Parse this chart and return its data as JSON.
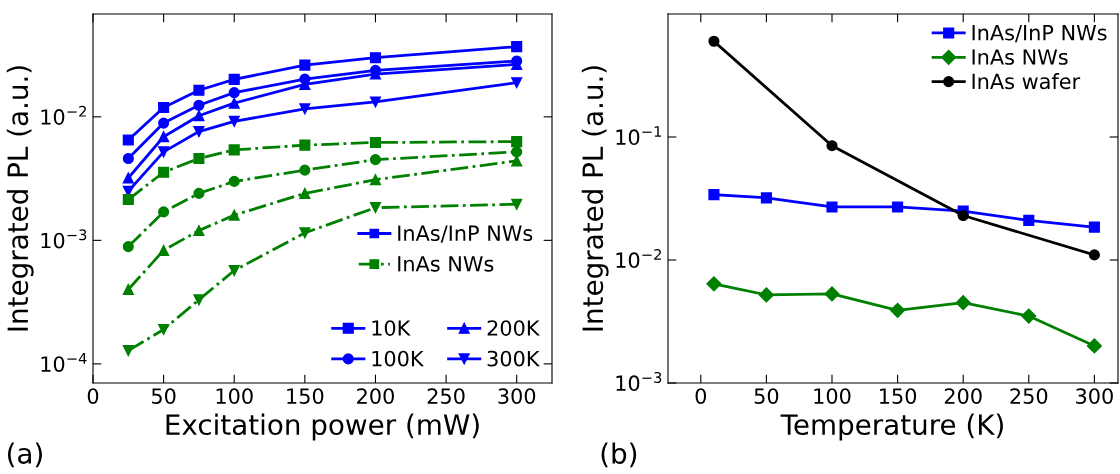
{
  "chart_data": [
    {
      "type": "line",
      "xlabel": "Excitation power (mW)",
      "ylabel": "Integrated PL (a.u.)",
      "log": "y",
      "x": [
        25,
        50,
        75,
        100,
        150,
        200,
        300
      ],
      "xlim": [
        0,
        325
      ],
      "xticks": [
        0,
        50,
        100,
        150,
        200,
        250,
        300
      ],
      "ylim": [
        7e-05,
        0.068
      ],
      "yticks": [
        {
          "value": 0.0001,
          "label": "10$^{−4}$"
        },
        {
          "value": 0.001,
          "label": "10$^{−3}$"
        },
        {
          "value": 0.01,
          "label": "10$^{−2}$"
        }
      ],
      "grid": false,
      "legend": "bottom right",
      "series": [
        {
          "name": "10K",
          "color": "#0000ff",
          "line_style": "solid",
          "marker": "square",
          "values": [
            0.0065,
            0.0119,
            0.0164,
            0.0201,
            0.0262,
            0.0301,
            0.037
          ]
        },
        {
          "name": "100K",
          "color": "#0000ff",
          "line_style": "solid",
          "marker": "circle",
          "values": [
            0.0046,
            0.0089,
            0.0124,
            0.0157,
            0.0202,
            0.0238,
            0.0283
          ]
        },
        {
          "name": "200K",
          "color": "#0000ff",
          "line_style": "solid",
          "marker": "triangle",
          "values": [
            0.0032,
            0.0069,
            0.0102,
            0.0129,
            0.0183,
            0.0222,
            0.0266
          ]
        },
        {
          "name": "300K",
          "color": "#0000ff",
          "line_style": "solid",
          "marker": "triangle-down",
          "values": [
            0.0025,
            0.0052,
            0.0076,
            0.0092,
            0.0116,
            0.0132,
            0.0189
          ]
        },
        {
          "color": "#008000",
          "line_style": "dashdot",
          "marker": "square",
          "values": [
            0.00214,
            0.00356,
            0.0046,
            0.0054,
            0.0059,
            0.0062,
            0.0063
          ]
        },
        {
          "color": "#008000",
          "line_style": "dashdot",
          "marker": "circle",
          "values": [
            0.00089,
            0.0017,
            0.0024,
            0.003,
            0.0037,
            0.0045,
            0.0052
          ]
        },
        {
          "color": "#008000",
          "line_style": "dashdot",
          "marker": "triangle",
          "values": [
            0.0004,
            0.00083,
            0.0012,
            0.0016,
            0.0024,
            0.0031,
            0.0044
          ]
        },
        {
          "color": "#008000",
          "line_style": "dashdot",
          "marker": "triangle-down",
          "values": [
            0.000128,
            0.00019,
            0.00033,
            0.00057,
            0.00115,
            0.00184,
            0.00196
          ]
        }
      ],
      "annotations": [
        "(a)",
        "InAs/InP NWs",
        "InAs NWs"
      ]
    },
    {
      "type": "line",
      "xlabel": "Temperature (K)",
      "ylabel": "Integrated PL (a.u.)",
      "log": "y",
      "x": [
        10,
        50,
        100,
        150,
        200,
        250,
        300
      ],
      "xlim": [
        -25,
        318
      ],
      "xticks": [
        0,
        50,
        100,
        150,
        200,
        250,
        300
      ],
      "ylim": [
        0.001,
        1
      ],
      "yticks": [
        {
          "value": 0.001,
          "label": "10$^{−3}$"
        },
        {
          "value": 0.01,
          "label": "10$^{−2}$"
        },
        {
          "value": 0.1,
          "label": "10$^{−1}$"
        }
      ],
      "grid": false,
      "legend": "top right",
      "series": [
        {
          "name": "InAs/InP NWs",
          "color": "#0000ff",
          "line_style": "solid",
          "marker": "square",
          "values": [
            0.034,
            0.032,
            0.027,
            0.027,
            0.025,
            0.021,
            0.0185
          ]
        },
        {
          "name": "InAs NWs",
          "color": "#008000",
          "line_style": "solid",
          "marker": "diamond",
          "values": [
            0.0064,
            0.0052,
            0.0053,
            0.0039,
            0.0045,
            0.0035,
            0.002
          ]
        },
        {
          "name": "InAs wafer",
          "color": "#000000",
          "line_style": "solid",
          "marker": "circle",
          "x": [
            10,
            100,
            200,
            300
          ],
          "values": [
            0.6,
            0.085,
            0.023,
            0.011
          ]
        }
      ],
      "annotations": [
        "(b)"
      ]
    }
  ]
}
